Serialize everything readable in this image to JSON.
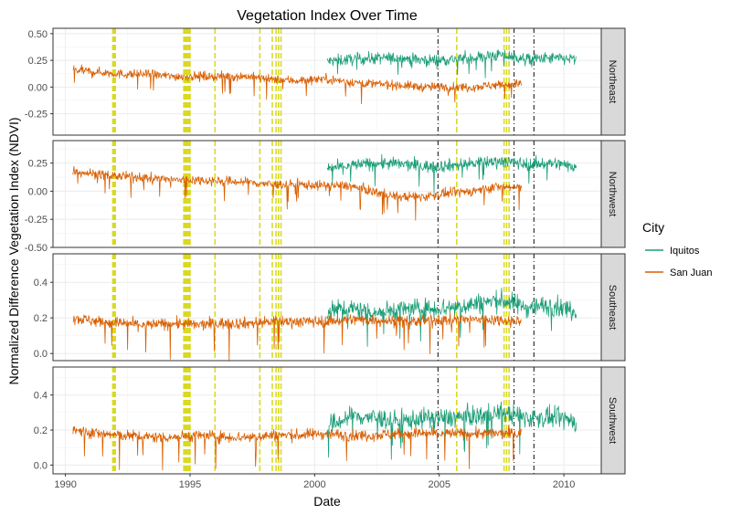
{
  "chart_data": {
    "type": "line",
    "title": "Vegetation Index Over Time",
    "xlabel": "Date",
    "ylabel": "Normalized Difference Vegetation Index (NDVI)",
    "x_range": [
      1989.5,
      2011.5
    ],
    "x_ticks": [
      "1990",
      "1995",
      "2000",
      "2005",
      "2010"
    ],
    "facets": [
      "Northeast",
      "Northwest",
      "Southeast",
      "Southwest"
    ],
    "facet_ylim": [
      [
        -0.45,
        0.55
      ],
      [
        -0.5,
        0.45
      ],
      [
        -0.04,
        0.56
      ],
      [
        -0.05,
        0.56
      ]
    ],
    "facet_yticks": [
      [
        "-0.25",
        "0.00",
        "0.25",
        "0.50"
      ],
      [
        "-0.50",
        "-0.25",
        "0.00",
        "0.25"
      ],
      [
        "0.0",
        "0.2",
        "0.4"
      ],
      [
        "0.0",
        "0.2",
        "0.4"
      ]
    ],
    "legend": {
      "title": "City",
      "position": "right"
    },
    "series": [
      {
        "name": "Iquitos",
        "color": "#1b9e77",
        "x_range": [
          2000.5,
          2010.5
        ],
        "facet_values": [
          [
            0.24,
            0.26,
            0.27,
            0.27,
            0.25,
            0.26,
            0.28,
            0.3,
            0.26,
            0.27,
            0.26
          ],
          [
            0.2,
            0.23,
            0.25,
            0.24,
            0.22,
            0.23,
            0.25,
            0.27,
            0.24,
            0.25,
            0.22
          ],
          [
            0.24,
            0.25,
            0.23,
            0.25,
            0.25,
            0.26,
            0.28,
            0.3,
            0.26,
            0.27,
            0.24
          ],
          [
            0.22,
            0.28,
            0.27,
            0.25,
            0.27,
            0.27,
            0.28,
            0.3,
            0.27,
            0.27,
            0.25
          ]
        ]
      },
      {
        "name": "San Juan",
        "color": "#d95f02",
        "x_range": [
          1990.3,
          2008.3
        ],
        "facet_values": [
          [
            0.16,
            0.14,
            0.12,
            0.12,
            0.1,
            0.1,
            0.1,
            0.1,
            0.07,
            0.06,
            0.08,
            0.05,
            0.03,
            0.02,
            0.0,
            0.0,
            0.0,
            0.02,
            0.03
          ],
          [
            0.18,
            0.15,
            0.13,
            0.12,
            0.1,
            0.1,
            0.09,
            0.08,
            0.06,
            0.06,
            0.05,
            0.05,
            0.0,
            -0.05,
            -0.05,
            -0.02,
            0.0,
            0.04,
            0.03
          ],
          [
            0.2,
            0.18,
            0.17,
            0.16,
            0.17,
            0.16,
            0.17,
            0.17,
            0.18,
            0.18,
            0.18,
            0.19,
            0.19,
            0.18,
            0.18,
            0.19,
            0.19,
            0.19,
            0.18
          ],
          [
            0.2,
            0.18,
            0.17,
            0.16,
            0.16,
            0.17,
            0.16,
            0.16,
            0.17,
            0.17,
            0.18,
            0.17,
            0.17,
            0.18,
            0.18,
            0.18,
            0.18,
            0.18,
            0.18
          ]
        ]
      }
    ],
    "reference_lines": {
      "yellow": {
        "color": "#d4d400",
        "x": [
          1991.9,
          1991.95,
          1992.0,
          1994.75,
          1994.8,
          1994.85,
          1994.9,
          1994.95,
          1995.0,
          1996.0,
          1997.8,
          1998.3,
          1998.45,
          1998.55,
          1998.65,
          2005.7,
          2007.6,
          2007.7,
          2007.8
        ]
      },
      "black": {
        "color": "#333333",
        "x": [
          2004.95,
          2008.0,
          2008.8
        ]
      }
    }
  }
}
